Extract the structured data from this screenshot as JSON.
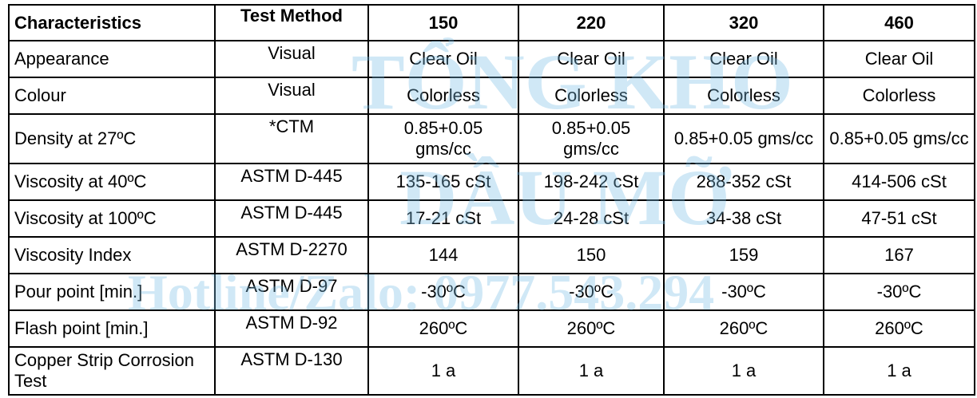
{
  "table": {
    "header": [
      "Characteristics",
      "Test Method",
      "150",
      "220",
      "320",
      "460"
    ],
    "rows": [
      [
        "Appearance",
        "Visual",
        "Clear Oil",
        "Clear Oil",
        "Clear Oil",
        "Clear Oil"
      ],
      [
        "Colour",
        "Visual",
        "Colorless",
        "Colorless",
        "Colorless",
        "Colorless"
      ],
      [
        "Density at 27ºC",
        "*CTM",
        "0.85+0.05 gms/cc",
        "0.85+0.05 gms/cc",
        "0.85+0.05 gms/cc",
        "0.85+0.05 gms/cc"
      ],
      [
        "Viscosity at 40ºC",
        "ASTM D-445",
        "135-165 cSt",
        "198-242 cSt",
        "288-352 cSt",
        "414-506 cSt"
      ],
      [
        "Viscosity at 100ºC",
        "ASTM D-445",
        "17-21 cSt",
        "24-28 cSt",
        "34-38 cSt",
        "47-51 cSt"
      ],
      [
        "Viscosity Index",
        "ASTM D-2270",
        "144",
        "150",
        "159",
        "167"
      ],
      [
        "Pour point [min.]",
        "ASTM D-97",
        "-30ºC",
        "-30ºC",
        "-30ºC",
        "-30ºC"
      ],
      [
        "Flash point [min.]",
        "ASTM D-92",
        "260ºC",
        "260ºC",
        "260ºC",
        "260ºC"
      ],
      [
        "Copper Strip Corrosion Test",
        "ASTM D-130",
        "1 a",
        "1 a",
        "1 a",
        "1 a"
      ]
    ]
  },
  "watermark": {
    "line1": "TỔNG KHO",
    "line2": "DẦU MỠ",
    "line3": "Hotline/Zalo: 0977.543.294"
  }
}
